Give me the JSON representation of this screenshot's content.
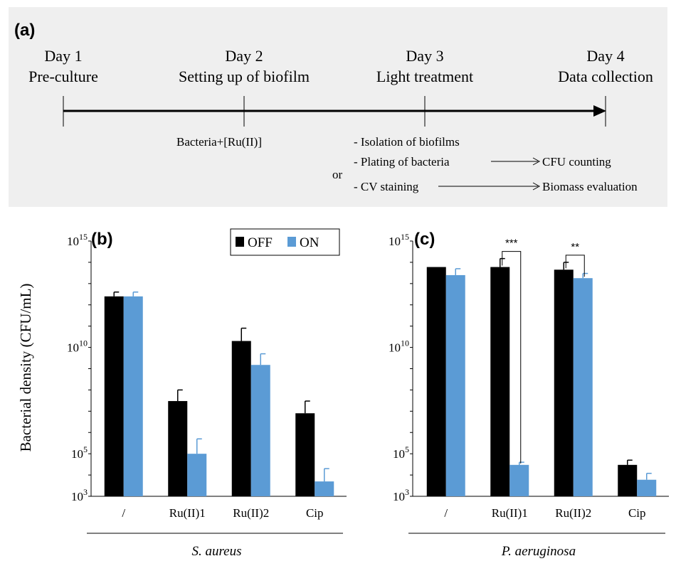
{
  "timeline": {
    "panel_label": "(a)",
    "days": [
      {
        "day": "Day 1",
        "task": "Pre-culture"
      },
      {
        "day": "Day 2",
        "task": "Setting up of biofilm"
      },
      {
        "day": "Day 3",
        "task": "Light treatment"
      },
      {
        "day": "Day 4",
        "task": "Data collection"
      }
    ],
    "day2_note": "Bacteria+[Ru(II)]",
    "day3_notes": {
      "isolation": "- Isolation of biofilms",
      "plating": "- Plating of bacteria",
      "cfu": "CFU counting",
      "or": "or",
      "cv": "- CV staining",
      "biomass": "Biomass evaluation"
    }
  },
  "legend": {
    "off": "OFF",
    "on": "ON"
  },
  "colors": {
    "off": "#000000",
    "on": "#5b9bd5",
    "panel_bg": "#efefef"
  },
  "chart_data": [
    {
      "type": "bar",
      "panel_label": "(b)",
      "scale": "log",
      "ylabel": "Bacterial density (CFU/mL)",
      "ylim": [
        1000,
        1000000000000000
      ],
      "yticks": [
        {
          "base": "10",
          "exp": "15",
          "value": 1000000000000000.0
        },
        {
          "base": "10",
          "exp": "10",
          "value": 10000000000.0
        },
        {
          "base": "10",
          "exp": "5",
          "value": 100000.0
        },
        {
          "base": "10",
          "exp": "3",
          "value": 1000.0
        }
      ],
      "categories": [
        "/",
        "Ru(II)1",
        "Ru(II)2",
        "Cip"
      ],
      "group_label": "S. aureus",
      "series": [
        {
          "name": "OFF",
          "values": [
            2500000000000.0,
            30000000.0,
            20000000000.0,
            8000000.0
          ],
          "error_top": [
            4000000000000.0,
            100000000.0,
            80000000000.0,
            30000000.0
          ]
        },
        {
          "name": "ON",
          "values": [
            2500000000000.0,
            100000.0,
            1500000000.0,
            5000.0
          ],
          "error_top": [
            4000000000000.0,
            500000.0,
            5000000000.0,
            20000.0
          ]
        }
      ],
      "significance": []
    },
    {
      "type": "bar",
      "panel_label": "(c)",
      "scale": "log",
      "ylim": [
        1000,
        1000000000000000
      ],
      "yticks": [
        {
          "base": "10",
          "exp": "15",
          "value": 1000000000000000.0
        },
        {
          "base": "10",
          "exp": "10",
          "value": 10000000000.0
        },
        {
          "base": "10",
          "exp": "5",
          "value": 100000.0
        },
        {
          "base": "10",
          "exp": "3",
          "value": 1000.0
        }
      ],
      "categories": [
        "/",
        "Ru(II)1",
        "Ru(II)2",
        "Cip"
      ],
      "group_label": "P. aeruginosa",
      "series": [
        {
          "name": "OFF",
          "values": [
            60000000000000.0,
            60000000000000.0,
            45000000000000.0,
            30000.0
          ],
          "error_top": [
            60000000000000.0,
            150000000000000.0,
            100000000000000.0,
            50000.0
          ]
        },
        {
          "name": "ON",
          "values": [
            25000000000000.0,
            30000.0,
            18000000000000.0,
            6000.0
          ],
          "error_top": [
            50000000000000.0,
            40000.0,
            30000000000000.0,
            12000.0
          ]
        }
      ],
      "significance": [
        {
          "category": "Ru(II)1",
          "label": "***"
        },
        {
          "category": "Ru(II)2",
          "label": "**"
        }
      ]
    }
  ]
}
